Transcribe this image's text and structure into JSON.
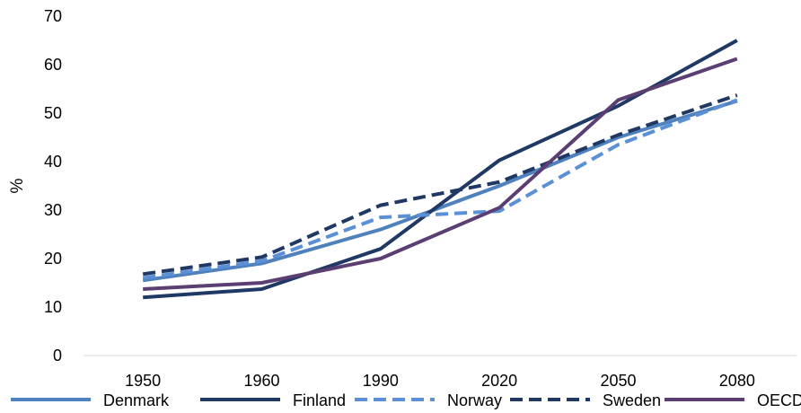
{
  "chart_data": {
    "type": "line",
    "title": "",
    "xlabel": "",
    "ylabel": "%",
    "categories": [
      "1950",
      "1960",
      "1990",
      "2020",
      "2050",
      "2080"
    ],
    "ylim": [
      0,
      70
    ],
    "yticks": [
      "0",
      "10",
      "20",
      "30",
      "40",
      "50",
      "60",
      "70"
    ],
    "grid": false,
    "legend_position": "bottom",
    "series": [
      {
        "name": "Denmark",
        "values": [
          15.5,
          19,
          26,
          35,
          45,
          52.5
        ],
        "color": "#4f81bd",
        "dash": "solid"
      },
      {
        "name": "Finland",
        "values": [
          12,
          13.7,
          22,
          40.3,
          51.5,
          65
        ],
        "color": "#1f3864",
        "dash": "solid"
      },
      {
        "name": "Norway",
        "values": [
          16,
          19.5,
          28.5,
          29.8,
          43.5,
          52.7
        ],
        "color": "#5b8fd6",
        "dash": "dashed"
      },
      {
        "name": "Sweden",
        "values": [
          16.8,
          20.3,
          31,
          35.8,
          45.5,
          53.7
        ],
        "color": "#1f3864",
        "dash": "dashed"
      },
      {
        "name": "OECD",
        "values": [
          13.7,
          15,
          20,
          30.5,
          52.7,
          61.2
        ],
        "color": "#5b3f72",
        "dash": "solid"
      }
    ]
  }
}
